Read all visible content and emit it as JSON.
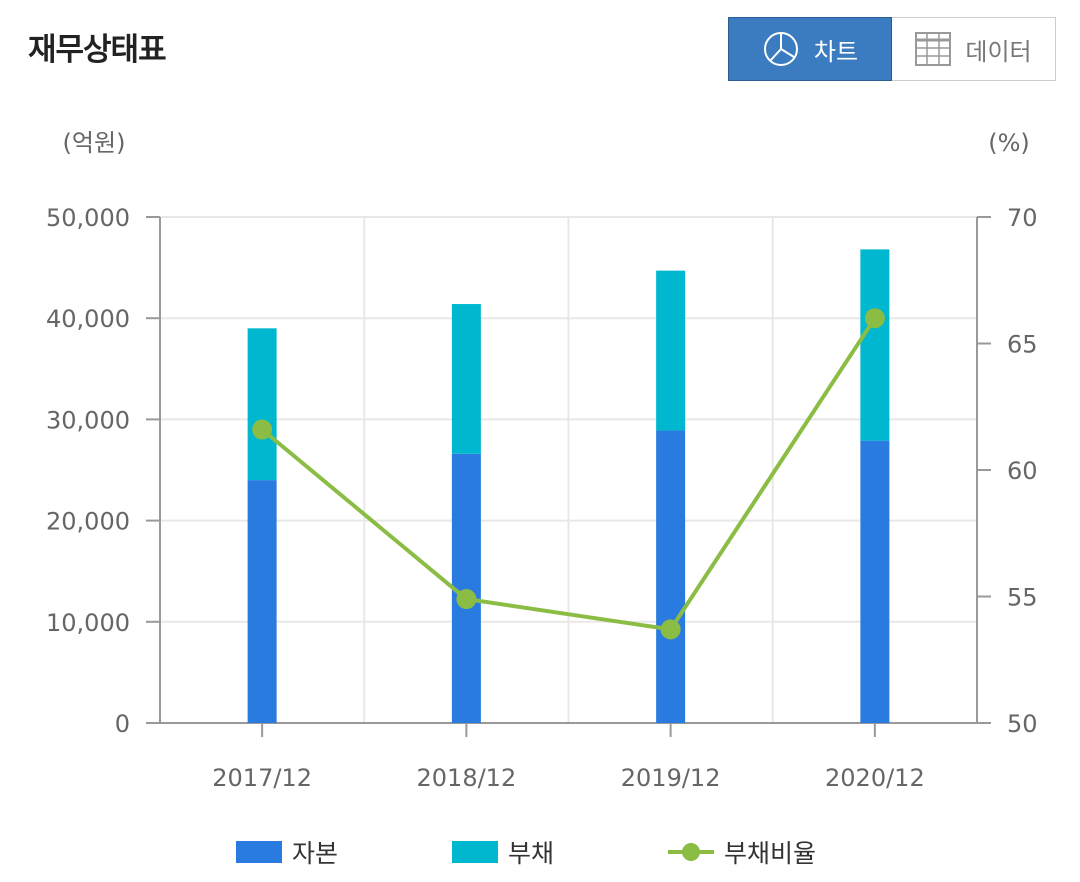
{
  "page": {
    "title": "재무상태표"
  },
  "toggle": {
    "chart_label": "차트",
    "data_label": "데이터",
    "active": "chart"
  },
  "colors": {
    "capital": "#2a7be0",
    "liabilities": "#00b7d0",
    "ratio": "#8bbd45",
    "toggle_active": "#3b7bbf"
  },
  "chart_data": {
    "type": "bar",
    "stacked": true,
    "categories": [
      "2017/12",
      "2018/12",
      "2019/12",
      "2020/12"
    ],
    "series": [
      {
        "name": "자본",
        "type": "bar",
        "axis": "left",
        "values": [
          24000,
          26600,
          28900,
          27900
        ]
      },
      {
        "name": "부채",
        "type": "bar",
        "axis": "left",
        "values": [
          15000,
          14800,
          15800,
          18900
        ]
      },
      {
        "name": "부채비율",
        "type": "line",
        "axis": "right",
        "values": [
          61.6,
          54.9,
          53.7,
          66.0
        ]
      }
    ],
    "left_axis": {
      "unit_label": "(억원)",
      "range": [
        0,
        50000
      ],
      "ticks": [
        0,
        10000,
        20000,
        30000,
        40000,
        50000
      ],
      "tick_labels": [
        "0",
        "10,000",
        "20,000",
        "30,000",
        "40,000",
        "50,000"
      ]
    },
    "right_axis": {
      "unit_label": "(%)",
      "range": [
        50,
        70
      ],
      "ticks": [
        50,
        55,
        60,
        65,
        70
      ],
      "tick_labels": [
        "50",
        "55",
        "60",
        "65",
        "70"
      ]
    },
    "grid": true,
    "legend_position": "bottom"
  }
}
